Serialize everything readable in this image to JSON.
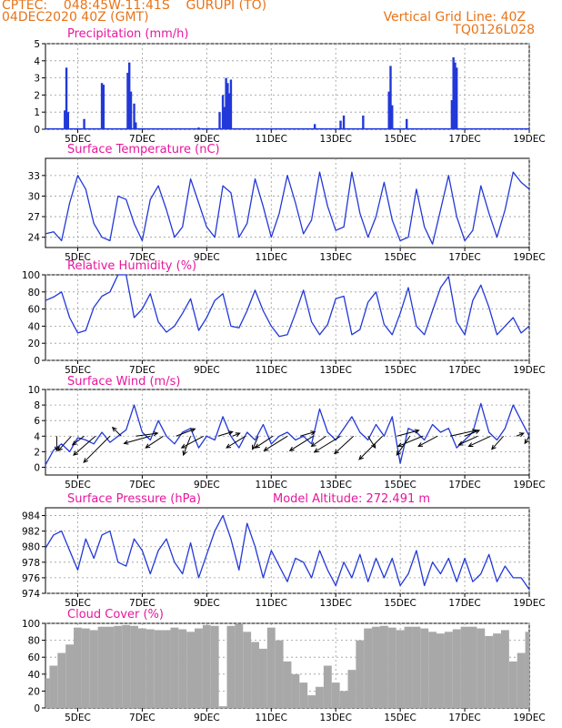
{
  "header": {
    "line1": "CPTEC:    048:45W-11:41S    GURUPI (TO)",
    "line2": "04DEC2020 40Z (GMT)",
    "right1": "Vertical Grid Line: 40Z",
    "right2": "TQ0126L028"
  },
  "x_tick_labels": [
    "5DEC",
    "7DEC",
    "9DEC",
    "11DEC",
    "13DEC",
    "15DEC",
    "17DEC",
    "19DEC"
  ],
  "colors": {
    "title": "#e8169e",
    "header": "#e8741a",
    "line": "#2238d8",
    "cloud": "#a8a8a8"
  },
  "chart_data": [
    {
      "type": "bar",
      "title": "Precipitation (mm/h)",
      "x": [
        4.6,
        4.65,
        4.7,
        5.2,
        5.75,
        5.8,
        6.55,
        6.6,
        6.65,
        6.75,
        6.8,
        8.75,
        9.4,
        9.5,
        9.55,
        9.6,
        9.65,
        9.7,
        9.75,
        12.35,
        13.15,
        13.25,
        13.85,
        14.65,
        14.7,
        14.75,
        15.2,
        16.6,
        16.65,
        16.7,
        16.75
      ],
      "values": [
        1.1,
        3.6,
        1.0,
        0.6,
        2.7,
        2.6,
        3.3,
        3.9,
        2.2,
        1.5,
        0.4,
        0.1,
        1.0,
        2.0,
        1.3,
        3.0,
        2.7,
        2.1,
        2.9,
        0.3,
        0.5,
        0.8,
        0.8,
        2.2,
        3.7,
        1.4,
        0.6,
        1.7,
        4.2,
        3.9,
        3.6
      ],
      "ylim": [
        0,
        5
      ],
      "yticks": [
        0,
        1,
        2,
        3,
        4,
        5
      ]
    },
    {
      "type": "line",
      "title": "Surface Temperature (nC)",
      "x": [
        4,
        4.25,
        4.5,
        4.75,
        5,
        5.25,
        5.5,
        5.75,
        6,
        6.25,
        6.5,
        6.75,
        7,
        7.25,
        7.5,
        7.75,
        8,
        8.25,
        8.5,
        8.75,
        9,
        9.25,
        9.5,
        9.75,
        10,
        10.25,
        10.5,
        10.75,
        11,
        11.25,
        11.5,
        11.75,
        12,
        12.25,
        12.5,
        12.75,
        13,
        13.25,
        13.5,
        13.75,
        14,
        14.25,
        14.5,
        14.75,
        15,
        15.25,
        15.5,
        15.75,
        16,
        16.25,
        16.5,
        16.75,
        17,
        17.25,
        17.5,
        17.75,
        18,
        18.25,
        18.5,
        18.75,
        19
      ],
      "values": [
        24.5,
        24.8,
        23.5,
        29.0,
        33.0,
        31.0,
        26.0,
        24.0,
        23.5,
        30.0,
        29.5,
        26.0,
        23.5,
        29.5,
        31.5,
        28.0,
        24.0,
        25.5,
        32.5,
        29.0,
        25.5,
        24.0,
        31.5,
        30.5,
        24.0,
        26.0,
        32.5,
        28.5,
        24.0,
        27.5,
        33.0,
        29.0,
        24.5,
        26.5,
        33.5,
        28.5,
        25.0,
        25.5,
        33.5,
        27.5,
        24.0,
        27.0,
        32.0,
        26.5,
        23.5,
        24.0,
        31.0,
        25.5,
        23.0,
        28.0,
        33.0,
        27.0,
        23.5,
        25.0,
        31.5,
        27.5,
        24.0,
        28.0,
        33.5,
        32.0,
        31.0
      ],
      "ylim": [
        22.5,
        35.5
      ],
      "yticks": [
        24,
        27,
        30,
        33
      ]
    },
    {
      "type": "line",
      "title": "Relative Humidity (%)",
      "x": [
        4,
        4.25,
        4.5,
        4.75,
        5,
        5.25,
        5.5,
        5.75,
        6,
        6.25,
        6.5,
        6.75,
        7,
        7.25,
        7.5,
        7.75,
        8,
        8.25,
        8.5,
        8.75,
        9,
        9.25,
        9.5,
        9.75,
        10,
        10.25,
        10.5,
        10.75,
        11,
        11.25,
        11.5,
        11.75,
        12,
        12.25,
        12.5,
        12.75,
        13,
        13.25,
        13.5,
        13.75,
        14,
        14.25,
        14.5,
        14.75,
        15,
        15.25,
        15.5,
        15.75,
        16,
        16.25,
        16.5,
        16.75,
        17,
        17.25,
        17.5,
        17.75,
        18,
        18.25,
        18.5,
        18.75,
        19
      ],
      "values": [
        70,
        74,
        80,
        50,
        32,
        35,
        62,
        75,
        80,
        100,
        100,
        50,
        60,
        78,
        45,
        33,
        40,
        55,
        72,
        35,
        50,
        70,
        78,
        40,
        38,
        58,
        82,
        58,
        40,
        28,
        30,
        55,
        82,
        45,
        30,
        42,
        72,
        75,
        30,
        36,
        68,
        80,
        42,
        30,
        55,
        85,
        40,
        30,
        58,
        85,
        98,
        45,
        30,
        70,
        88,
        62,
        30,
        40,
        50,
        32,
        40
      ],
      "ylim": [
        0,
        100
      ],
      "yticks": [
        0,
        20,
        40,
        60,
        80,
        100
      ]
    },
    {
      "type": "line",
      "title": "Surface Wind (m/s)",
      "x": [
        4,
        4.25,
        4.5,
        4.75,
        5,
        5.25,
        5.5,
        5.75,
        6,
        6.25,
        6.5,
        6.75,
        7,
        7.25,
        7.5,
        7.75,
        8,
        8.25,
        8.5,
        8.75,
        9,
        9.25,
        9.5,
        9.75,
        10,
        10.25,
        10.5,
        10.75,
        11,
        11.25,
        11.5,
        11.75,
        12,
        12.25,
        12.5,
        12.75,
        13,
        13.25,
        13.5,
        13.75,
        14,
        14.25,
        14.5,
        14.75,
        15,
        15.25,
        15.5,
        15.75,
        16,
        16.25,
        16.5,
        16.75,
        17,
        17.25,
        17.5,
        17.75,
        18,
        18.25,
        18.5,
        18.75,
        19
      ],
      "values": [
        0.3,
        2.2,
        3.0,
        2.0,
        3.8,
        3.5,
        3.0,
        4.5,
        3.2,
        4.0,
        4.8,
        8.0,
        4.5,
        3.5,
        6.0,
        4.0,
        3.0,
        4.5,
        5.0,
        2.5,
        4.0,
        3.5,
        6.5,
        4.0,
        2.5,
        4.5,
        3.5,
        5.5,
        3.0,
        4.0,
        4.5,
        3.5,
        4.0,
        3.0,
        7.5,
        4.5,
        3.5,
        5.0,
        6.5,
        4.5,
        3.5,
        5.5,
        4.0,
        6.5,
        0.5,
        5.0,
        4.5,
        3.5,
        5.5,
        4.5,
        5.0,
        2.5,
        3.5,
        4.5,
        8.2,
        4.5,
        3.5,
        5.0,
        8.0,
        6.0,
        4.0
      ],
      "ylim": [
        -1,
        10
      ],
      "yticks": [
        0,
        2,
        4,
        6,
        8,
        10
      ],
      "wind_vectors": {
        "x": [
          4.35,
          4.8,
          5.2,
          5.55,
          6.0,
          6.35,
          6.8,
          7.25,
          7.65,
          8.05,
          8.5,
          8.9,
          9.35,
          9.8,
          10.2,
          10.6,
          11.05,
          11.5,
          11.9,
          12.3,
          12.7,
          13.15,
          13.55,
          14.0,
          14.45,
          14.9,
          15.3,
          15.7,
          16.15,
          16.55,
          17.0,
          17.4,
          17.8,
          18.2,
          18.6,
          19.0
        ],
        "u": [
          0,
          -0.9,
          -0.8,
          -1.5,
          -1.8,
          -0.6,
          1.5,
          -1.8,
          -1.2,
          1.3,
          -0.5,
          -1.5,
          1.0,
          0.5,
          -1.3,
          -0.4,
          -1.2,
          -1.6,
          1.0,
          -1.6,
          -1.0,
          -1.8,
          -1.3,
          0.5,
          -1.6,
          1.5,
          -0.9,
          -1.7,
          -1.3,
          1.8,
          1.0,
          -1.3,
          -1.5,
          -0.8,
          0.5,
          -0.3
        ],
        "v": [
          -1.0,
          -1.0,
          -0.6,
          -1.3,
          -1.8,
          0.6,
          0.2,
          -0.5,
          -0.8,
          0.5,
          -1.3,
          -0.8,
          0.3,
          0.2,
          -0.8,
          -0.9,
          -0.8,
          -1.0,
          0.3,
          -1.0,
          -0.7,
          -1.1,
          -1.2,
          -0.8,
          -1.6,
          0.4,
          -1.3,
          -0.7,
          -0.7,
          0.4,
          0.4,
          -0.6,
          -0.7,
          -0.9,
          0.2,
          -0.5
        ]
      }
    },
    {
      "type": "line",
      "title": "Surface Pressure (hPa)",
      "annotation": "Model Altitude: 272.491 m",
      "x": [
        4,
        4.25,
        4.5,
        4.75,
        5,
        5.25,
        5.5,
        5.75,
        6,
        6.25,
        6.5,
        6.75,
        7,
        7.25,
        7.5,
        7.75,
        8,
        8.25,
        8.5,
        8.75,
        9,
        9.25,
        9.5,
        9.75,
        10,
        10.25,
        10.5,
        10.75,
        11,
        11.25,
        11.5,
        11.75,
        12,
        12.25,
        12.5,
        12.75,
        13,
        13.25,
        13.5,
        13.75,
        14,
        14.25,
        14.5,
        14.75,
        15,
        15.25,
        15.5,
        15.75,
        16,
        16.25,
        16.5,
        16.75,
        17,
        17.25,
        17.5,
        17.75,
        18,
        18.25,
        18.5,
        18.75,
        19
      ],
      "values": [
        979.8,
        981.5,
        982.0,
        979.5,
        977.0,
        981.0,
        978.5,
        981.5,
        982.0,
        978.0,
        977.5,
        981.0,
        979.5,
        976.5,
        979.5,
        981.0,
        978.0,
        976.5,
        980.5,
        976.0,
        979.0,
        982.0,
        984.0,
        981.0,
        977.0,
        983.0,
        980.0,
        976.0,
        979.5,
        977.5,
        975.5,
        978.5,
        978.0,
        976.0,
        979.5,
        977.0,
        975.0,
        978.0,
        976.0,
        979.0,
        975.5,
        978.5,
        976.0,
        978.5,
        975.0,
        976.5,
        979.5,
        975.0,
        978.0,
        976.5,
        978.5,
        975.5,
        978.5,
        975.5,
        976.5,
        979.0,
        975.5,
        977.5,
        976.0,
        976.0,
        974.5
      ],
      "ylim": [
        974,
        985
      ],
      "yticks": [
        974,
        976,
        978,
        980,
        982,
        984
      ]
    },
    {
      "type": "area",
      "title": "Cloud Cover (%)",
      "x": [
        4.0,
        4.25,
        4.5,
        4.75,
        5.0,
        5.25,
        5.5,
        5.75,
        6.0,
        6.25,
        6.5,
        6.75,
        7.0,
        7.25,
        7.5,
        7.75,
        8.0,
        8.25,
        8.5,
        8.75,
        9.0,
        9.25,
        9.5,
        9.75,
        10.0,
        10.25,
        10.5,
        10.75,
        11.0,
        11.25,
        11.5,
        11.75,
        12.0,
        12.25,
        12.5,
        12.75,
        13.0,
        13.25,
        13.5,
        13.75,
        14.0,
        14.25,
        14.5,
        14.75,
        15.0,
        15.25,
        15.5,
        15.75,
        16.0,
        16.25,
        16.5,
        16.75,
        17.0,
        17.25,
        17.5,
        17.75,
        18.0,
        18.25,
        18.5,
        18.75,
        19.0
      ],
      "values": [
        35,
        50,
        65,
        75,
        95,
        94,
        92,
        96,
        96,
        97,
        98,
        97,
        94,
        93,
        92,
        92,
        95,
        93,
        90,
        94,
        98,
        97,
        2,
        97,
        99,
        90,
        78,
        70,
        95,
        80,
        55,
        40,
        30,
        15,
        25,
        50,
        30,
        20,
        45,
        80,
        94,
        96,
        97,
        95,
        92,
        96,
        96,
        94,
        90,
        88,
        90,
        93,
        96,
        96,
        94,
        85,
        88,
        92,
        55,
        65,
        90
      ],
      "ylim": [
        0,
        100
      ],
      "yticks": [
        0,
        20,
        40,
        60,
        80,
        100
      ]
    }
  ]
}
